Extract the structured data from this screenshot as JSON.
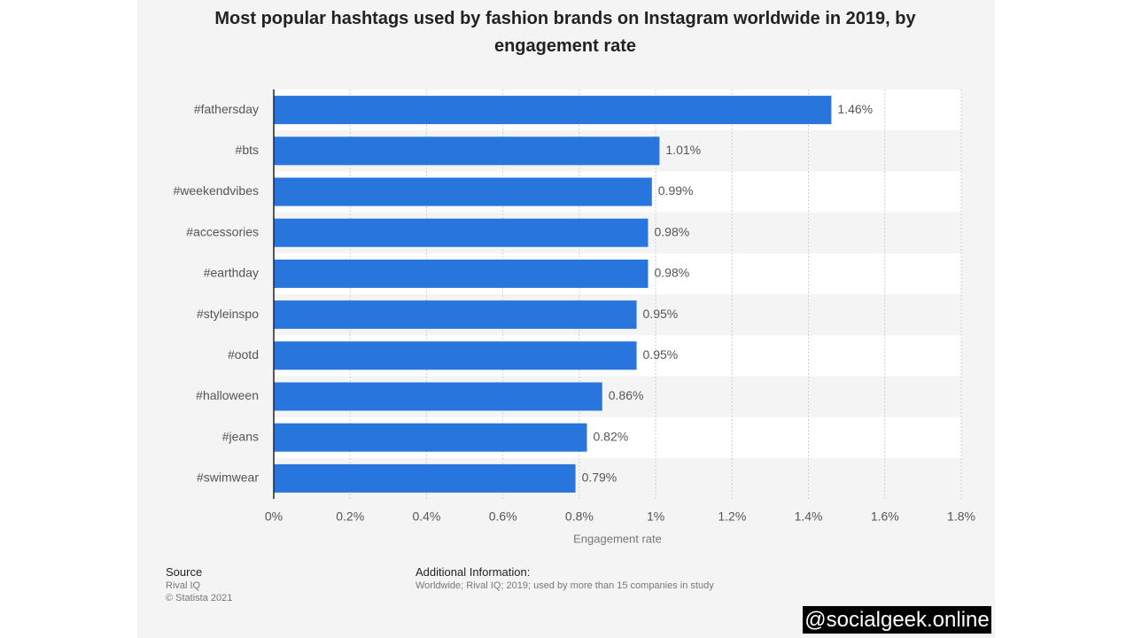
{
  "chart_data": {
    "type": "bar",
    "orientation": "horizontal",
    "title": "Most popular hashtags used by fashion brands on Instagram worldwide in 2019, by engagement rate",
    "x_label": "Engagement rate",
    "categories": [
      "#fathersday",
      "#bts",
      "#weekendvibes",
      "#accessories",
      "#earthday",
      "#styleinspo",
      "#ootd",
      "#halloween",
      "#jeans",
      "#swimwear"
    ],
    "values": [
      1.46,
      1.01,
      0.99,
      0.98,
      0.98,
      0.95,
      0.95,
      0.86,
      0.82,
      0.79
    ],
    "value_labels": [
      "1.46%",
      "1.01%",
      "0.99%",
      "0.98%",
      "0.98%",
      "0.95%",
      "0.95%",
      "0.86%",
      "0.82%",
      "0.79%"
    ],
    "color": "#2876dd",
    "xlim": [
      0,
      1.8
    ],
    "xticks": [
      {
        "value": 0,
        "label": "0%"
      },
      {
        "value": 0.2,
        "label": "0.2%"
      },
      {
        "value": 0.4,
        "label": "0.4%"
      },
      {
        "value": 0.6,
        "label": "0.6%"
      },
      {
        "value": 0.8,
        "label": "0.8%"
      },
      {
        "value": 1,
        "label": "1%"
      },
      {
        "value": 1.2,
        "label": "1.2%"
      },
      {
        "value": 1.4,
        "label": "1.4%"
      },
      {
        "value": 1.6,
        "label": "1.6%"
      },
      {
        "value": 1.8,
        "label": "1.8%"
      }
    ],
    "grid": true,
    "source_label": "Source",
    "source": "Rival IQ",
    "copyright": "© Statista 2021",
    "additional_info_label": "Additional Information:",
    "additional_info": "Worldwide; Rival IQ; 2019; used by more than 15 companies in study",
    "watermark": "@socialgeek.online"
  }
}
